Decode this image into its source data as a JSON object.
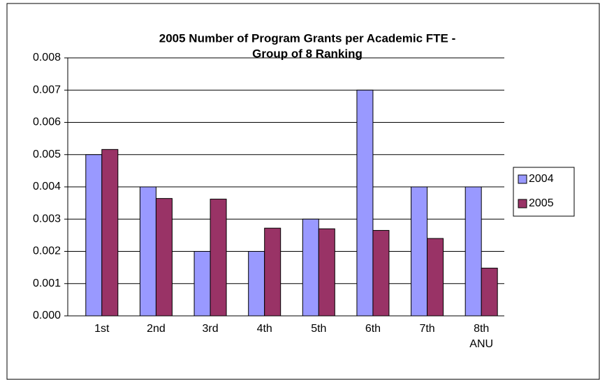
{
  "chart_data": {
    "type": "bar",
    "title": [
      "2005 Number of Program Grants per Academic FTE -",
      "Group of 8 Ranking"
    ],
    "categories": [
      "1st",
      "2nd",
      "3rd",
      "4th",
      "5th",
      "6th",
      "7th",
      "8th\nANU"
    ],
    "series": [
      {
        "name": "2004",
        "color": "#9999ff",
        "values": [
          0.005,
          0.004,
          0.002,
          0.002,
          0.003,
          0.007,
          0.004,
          0.004
        ]
      },
      {
        "name": "2005",
        "color": "#993366",
        "values": [
          0.00516,
          0.00364,
          0.00362,
          0.00272,
          0.0027,
          0.00265,
          0.0024,
          0.00148
        ]
      }
    ],
    "ylim": [
      0,
      0.008
    ],
    "yticks": [
      {
        "value": 0,
        "label": "0.000"
      },
      0.001,
      0.002,
      0.003,
      0.004,
      0.005,
      0.006,
      0.007,
      0.008
    ],
    "grid": true,
    "legend": "right"
  }
}
